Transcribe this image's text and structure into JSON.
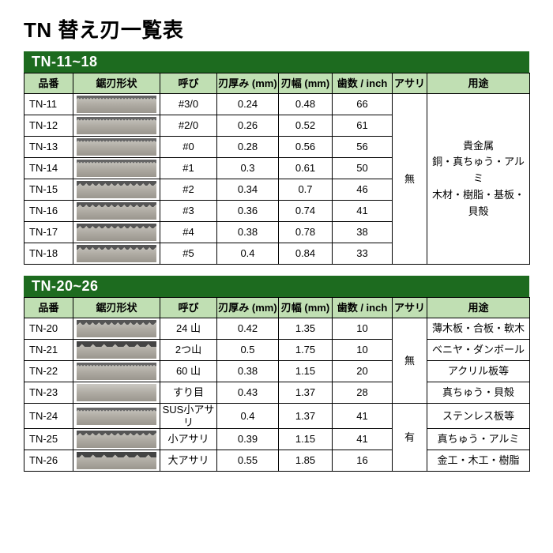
{
  "title": "TN 替え刃一覧表",
  "sections": [
    {
      "bar": "TN-11~18",
      "headers": [
        "品番",
        "鋸刃形状",
        "呼び",
        "刃厚み (mm)",
        "刃幅 (mm)",
        "歯数 / inch",
        "アサリ",
        "用途"
      ],
      "rows": [
        {
          "part": "TN-11",
          "blade": "teeth-fine",
          "call": "#3/0",
          "thick": "0.24",
          "width": "0.48",
          "teeth": "66"
        },
        {
          "part": "TN-12",
          "blade": "teeth-fine",
          "call": "#2/0",
          "thick": "0.26",
          "width": "0.52",
          "teeth": "61"
        },
        {
          "part": "TN-13",
          "blade": "teeth-fine",
          "call": "#0",
          "thick": "0.28",
          "width": "0.56",
          "teeth": "56"
        },
        {
          "part": "TN-14",
          "blade": "teeth-fine",
          "call": "#1",
          "thick": "0.3",
          "width": "0.61",
          "teeth": "50"
        },
        {
          "part": "TN-15",
          "blade": "teeth-mid",
          "call": "#2",
          "thick": "0.34",
          "width": "0.7",
          "teeth": "46"
        },
        {
          "part": "TN-16",
          "blade": "teeth-mid",
          "call": "#3",
          "thick": "0.36",
          "width": "0.74",
          "teeth": "41"
        },
        {
          "part": "TN-17",
          "blade": "teeth-mid",
          "call": "#4",
          "thick": "0.38",
          "width": "0.78",
          "teeth": "38"
        },
        {
          "part": "TN-18",
          "blade": "teeth-mid",
          "call": "#5",
          "thick": "0.4",
          "width": "0.84",
          "teeth": "33"
        }
      ],
      "asari": "無",
      "use": [
        "貴金属",
        "銅・真ちゅう・アルミ",
        "木材・樹脂・基板・貝殻"
      ]
    },
    {
      "bar": "TN-20~26",
      "headers": [
        "品番",
        "鋸刃形状",
        "呼び",
        "刃厚み (mm)",
        "刃幅 (mm)",
        "歯数 / inch",
        "アサリ",
        "用途"
      ],
      "rows": [
        {
          "part": "TN-20",
          "blade": "teeth-mid",
          "call": "24 山",
          "thick": "0.42",
          "width": "1.35",
          "teeth": "10",
          "use": "薄木板・合板・軟木"
        },
        {
          "part": "TN-21",
          "blade": "teeth-coarse",
          "call": "2つ山",
          "thick": "0.5",
          "width": "1.75",
          "teeth": "10",
          "use": "ベニヤ・ダンボール"
        },
        {
          "part": "TN-22",
          "blade": "teeth-fine",
          "call": "60 山",
          "thick": "0.38",
          "width": "1.15",
          "teeth": "20",
          "use": "アクリル板等"
        },
        {
          "part": "TN-23",
          "blade": "teeth-none",
          "call": "すり目",
          "thick": "0.43",
          "width": "1.37",
          "teeth": "28",
          "use": "真ちゅう・貝殻"
        },
        {
          "part": "TN-24",
          "blade": "teeth-fine",
          "call": "SUS小アサリ",
          "thick": "0.4",
          "width": "1.37",
          "teeth": "41",
          "use": "ステンレス板等"
        },
        {
          "part": "TN-25",
          "blade": "teeth-mid",
          "call": "小アサリ",
          "thick": "0.39",
          "width": "1.15",
          "teeth": "41",
          "use": "真ちゅう・アルミ"
        },
        {
          "part": "TN-26",
          "blade": "teeth-coarse",
          "call": "大アサリ",
          "thick": "0.55",
          "width": "1.85",
          "teeth": "16",
          "use": "金工・木工・樹脂"
        }
      ],
      "asari_groups": [
        {
          "label": "無",
          "span": 4
        },
        {
          "label": "有",
          "span": 3
        }
      ]
    }
  ]
}
